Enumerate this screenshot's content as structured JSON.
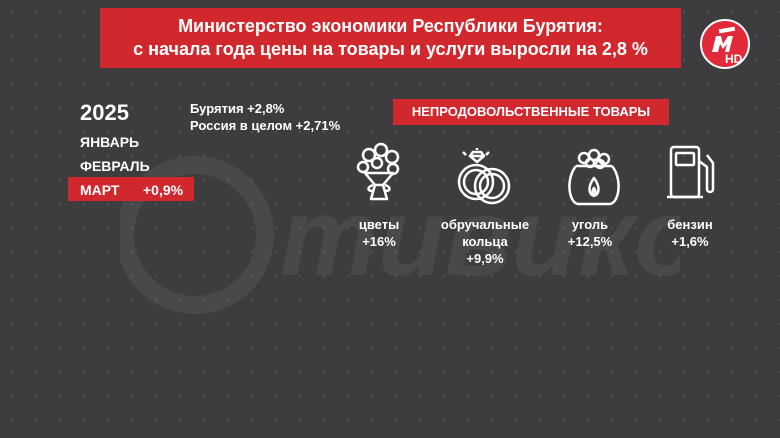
{
  "title": {
    "line1": "Министерство экономики Республики Бурятия:",
    "line2": "с начала года цены на товары и услуги выросли на 2,8 %"
  },
  "logo": {
    "hd": "HD"
  },
  "watermark": "тивиком",
  "period": {
    "year": "2025",
    "months": [
      "ЯНВАРЬ",
      "ФЕВРАЛЬ"
    ],
    "active_month": "МАРТ",
    "active_value": "+0,9%"
  },
  "stats": {
    "buryatia": "Бурятия +2,8%",
    "russia": "Россия в целом +2,71%"
  },
  "category": "НЕПРОДОВОЛЬСТВЕННЫЕ ТОВАРЫ",
  "items": [
    {
      "icon": "flowers-icon",
      "name": "цветы",
      "value": "+16%"
    },
    {
      "icon": "rings-icon",
      "name": "обручальные кольца",
      "value": "+9,9%"
    },
    {
      "icon": "coal-bag-icon",
      "name": "уголь",
      "value": "+12,5%"
    },
    {
      "icon": "fuel-pump-icon",
      "name": "бензин",
      "value": "+1,6%"
    }
  ],
  "colors": {
    "accent": "#d1282e",
    "background": "#3d3d3f",
    "text": "#ffffff"
  }
}
